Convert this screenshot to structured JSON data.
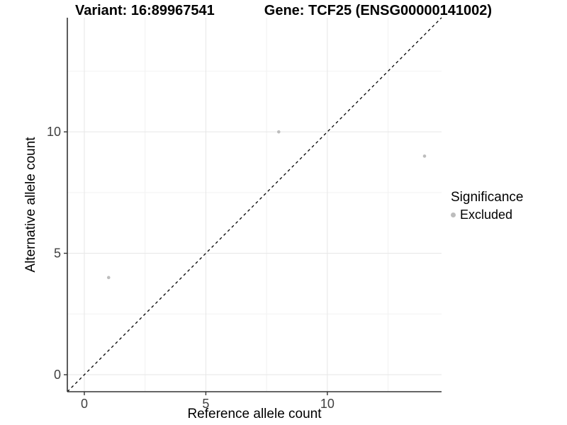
{
  "chart_data": {
    "type": "scatter",
    "title_left": "Variant: 16:89967541",
    "title_right": "Gene: TCF25 (ENSG00000141002)",
    "xlabel": "Reference allele count",
    "ylabel": "Alternative allele count",
    "xlim": [
      -0.7,
      14.7
    ],
    "ylim": [
      -0.7,
      14.7
    ],
    "xticks": [
      0,
      5,
      10
    ],
    "yticks": [
      0,
      5,
      10
    ],
    "xticks_minor": [
      2.5,
      7.5,
      12.5
    ],
    "yticks_minor": [
      2.5,
      7.5,
      12.5
    ],
    "grid": true,
    "series": [
      {
        "name": "Excluded",
        "color": "#bdbdbd",
        "points": [
          [
            1,
            4
          ],
          [
            8,
            10
          ],
          [
            14,
            9
          ]
        ]
      }
    ],
    "reference_line": {
      "type": "identity",
      "slope": 1,
      "intercept": 0,
      "style": "dashed",
      "color": "#000000"
    },
    "legend": {
      "title": "Significance",
      "position": "right",
      "entries": [
        {
          "label": "Excluded",
          "color": "#bdbdbd"
        }
      ]
    },
    "colors": {
      "axis": "#333333",
      "tick_label": "#404040",
      "grid_major": "#e6e6e6",
      "grid_minor": "#f2f2f2",
      "background": "#ffffff"
    }
  }
}
